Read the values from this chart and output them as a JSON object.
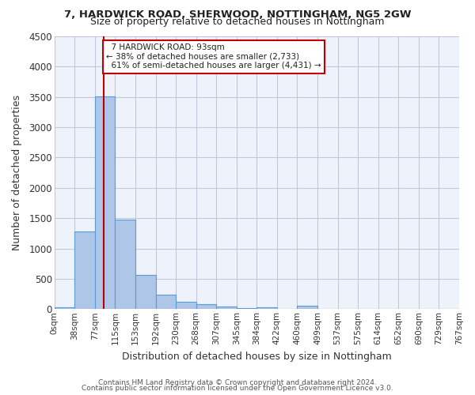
{
  "title1": "7, HARDWICK ROAD, SHERWOOD, NOTTINGHAM, NG5 2GW",
  "title2": "Size of property relative to detached houses in Nottingham",
  "xlabel": "Distribution of detached houses by size in Nottingham",
  "ylabel": "Number of detached properties",
  "footnote1": "Contains HM Land Registry data © Crown copyright and database right 2024.",
  "footnote2": "Contains public sector information licensed under the Open Government Licence v3.0.",
  "bin_labels": [
    "0sqm",
    "38sqm",
    "77sqm",
    "115sqm",
    "153sqm",
    "192sqm",
    "230sqm",
    "268sqm",
    "307sqm",
    "345sqm",
    "384sqm",
    "422sqm",
    "460sqm",
    "499sqm",
    "537sqm",
    "575sqm",
    "614sqm",
    "652sqm",
    "690sqm",
    "729sqm",
    "767sqm"
  ],
  "bar_heights": [
    30,
    1280,
    3510,
    1480,
    570,
    240,
    125,
    80,
    40,
    20,
    35,
    0,
    55,
    0,
    0,
    0,
    0,
    0,
    0,
    0
  ],
  "bar_color": "#aec6e8",
  "bar_edge_color": "#5b9bd5",
  "background_color": "#eef3fb",
  "grid_color": "#c0c8d8",
  "property_size": 93,
  "property_label": "7 HARDWICK ROAD: 93sqm",
  "pct_smaller": 38,
  "n_smaller": 2733,
  "pct_larger_semi": 61,
  "n_larger_semi": 4431,
  "vline_color": "#c00000",
  "annotation_box_color": "#ffffff",
  "annotation_box_edge": "#c00000",
  "ylim": [
    0,
    4500
  ],
  "yticks": [
    0,
    500,
    1000,
    1500,
    2000,
    2500,
    3000,
    3500,
    4000,
    4500
  ]
}
